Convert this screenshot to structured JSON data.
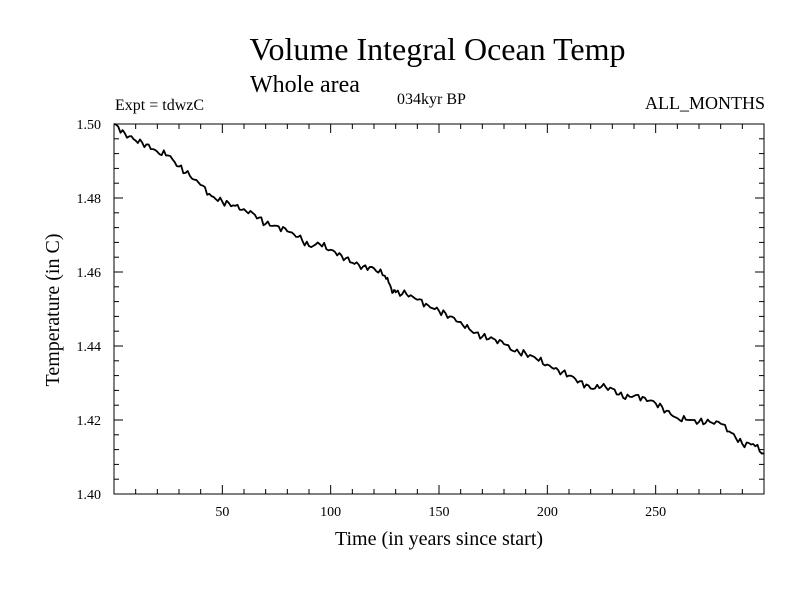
{
  "chart_data": {
    "type": "line",
    "title": "Volume Integral Ocean Temp",
    "subtitle": "Whole area",
    "annotations": {
      "experiment": "Expt = tdwzC",
      "period": "034kyr BP",
      "months": "ALL_MONTHS"
    },
    "xlabel": "Time (in years since start)",
    "ylabel": "Temperature (in C)",
    "xlim": [
      0,
      300
    ],
    "ylim": [
      1.4,
      1.5
    ],
    "xticks": [
      50,
      100,
      150,
      200,
      250
    ],
    "yticks": [
      "1.40",
      "1.42",
      "1.44",
      "1.46",
      "1.48",
      "1.50"
    ],
    "grid": false,
    "line_color": "#000000",
    "series": [
      {
        "x": [
          0,
          5,
          10,
          15,
          20,
          25,
          30,
          35,
          40,
          45,
          50,
          55,
          60,
          65,
          70,
          75,
          80,
          85,
          90,
          95,
          100,
          105,
          110,
          115,
          120,
          125,
          128,
          130,
          135,
          140,
          145,
          150,
          155,
          160,
          165,
          170,
          175,
          180,
          185,
          190,
          195,
          200,
          205,
          210,
          215,
          220,
          225,
          230,
          235,
          240,
          245,
          250,
          255,
          260,
          265,
          270,
          275,
          280,
          285,
          290,
          295,
          300
        ],
        "y": [
          1.5,
          1.4975,
          1.4955,
          1.4945,
          1.4925,
          1.4915,
          1.4885,
          1.486,
          1.4835,
          1.4805,
          1.479,
          1.478,
          1.477,
          1.4755,
          1.473,
          1.4725,
          1.471,
          1.4695,
          1.467,
          1.4675,
          1.466,
          1.4645,
          1.4625,
          1.4615,
          1.461,
          1.459,
          1.4555,
          1.4545,
          1.454,
          1.4525,
          1.451,
          1.4495,
          1.448,
          1.4465,
          1.444,
          1.4425,
          1.442,
          1.4405,
          1.4385,
          1.438,
          1.4365,
          1.435,
          1.4335,
          1.432,
          1.4305,
          1.4285,
          1.429,
          1.4285,
          1.426,
          1.4265,
          1.426,
          1.4245,
          1.4225,
          1.4205,
          1.42,
          1.4195,
          1.4195,
          1.419,
          1.4165,
          1.4135,
          1.4135,
          1.411
        ]
      }
    ]
  }
}
